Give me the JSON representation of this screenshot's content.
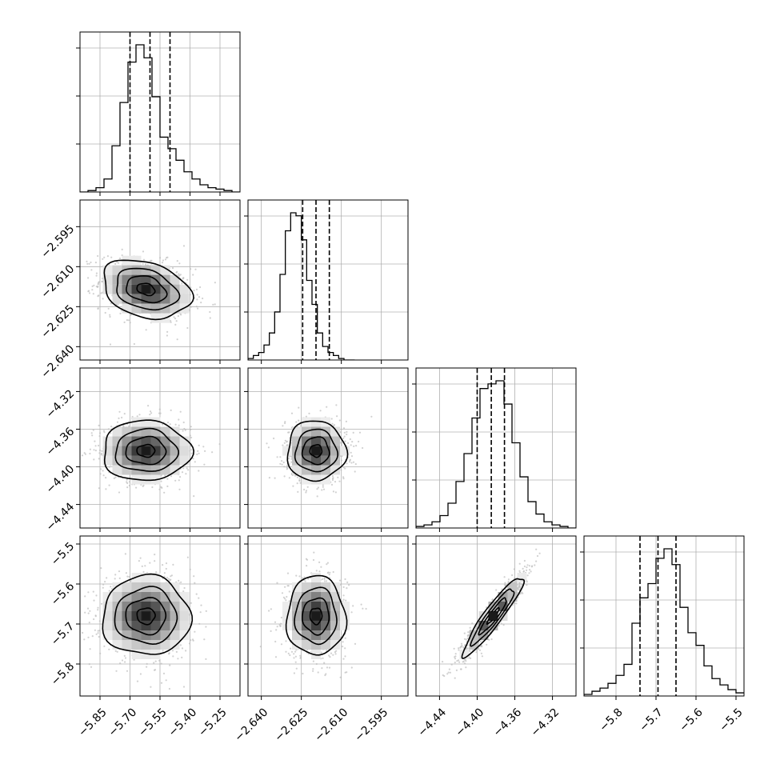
{
  "chart_data": {
    "type": "corner",
    "grid": true,
    "quantile_style": "dashed vertical lines at 16th, 50th, 84th percentiles",
    "variables": [
      {
        "range": [
          -5.95,
          -5.15
        ],
        "ticks": [
          -5.85,
          -5.7,
          -5.55,
          -5.4,
          -5.25
        ],
        "tick_labels": [
          "−5.85",
          "−5.70",
          "−5.55",
          "−5.40",
          "−5.25"
        ],
        "quantiles": [
          -5.7,
          -5.6,
          -5.5
        ],
        "hist_edges_start": -5.95,
        "hist_bin_width": 0.04,
        "hist": [
          0,
          1,
          3,
          9,
          32,
          62,
          90,
          102,
          93,
          66,
          38,
          30,
          22,
          14,
          9,
          5,
          3,
          2,
          1,
          0
        ]
      },
      {
        "range": [
          -2.645,
          -2.585
        ],
        "ticks": [
          -2.64,
          -2.625,
          -2.61,
          -2.595
        ],
        "tick_labels": [
          "−2.640",
          "−2.625",
          "−2.610",
          "−2.595"
        ],
        "quantiles": [
          -2.6245,
          -2.6195,
          -2.6145
        ],
        "hist_edges_start": -2.645,
        "hist_bin_width": 0.002,
        "hist": [
          1,
          3,
          5,
          10,
          18,
          32,
          57,
          86,
          98,
          96,
          80,
          53,
          37,
          18,
          9,
          5,
          3,
          1,
          0,
          0
        ]
      },
      {
        "range": [
          -4.465,
          -4.295
        ],
        "ticks": [
          -4.44,
          -4.4,
          -4.36,
          -4.32
        ],
        "tick_labels": [
          "−4.44",
          "−4.40",
          "−4.36",
          "−4.32"
        ],
        "quantiles": [
          -4.4,
          -4.385,
          -4.371
        ],
        "hist_edges_start": -4.465,
        "hist_bin_width": 0.0085,
        "hist": [
          1,
          2,
          4,
          8,
          16,
          30,
          48,
          71,
          90,
          93,
          95,
          80,
          55,
          33,
          17,
          9,
          4,
          2,
          1,
          0
        ]
      },
      {
        "range": [
          -5.88,
          -5.48
        ],
        "ticks": [
          -5.8,
          -5.7,
          -5.6,
          -5.5
        ],
        "tick_labels": [
          "−5.8",
          "−5.7",
          "−5.6",
          "−5.5"
        ],
        "quantiles": [
          -5.74,
          -5.695,
          -5.65
        ],
        "hist_edges_start": -5.88,
        "hist_bin_width": 0.02,
        "hist": [
          1,
          3,
          5,
          8,
          13,
          20,
          46,
          62,
          71,
          87,
          93,
          83,
          56,
          40,
          32,
          19,
          11,
          7,
          4,
          2
        ]
      }
    ],
    "pairs": [
      {
        "row": 1,
        "col": 0,
        "center": [
          -5.62,
          -2.6185
        ],
        "corr": -0.28
      },
      {
        "row": 2,
        "col": 0,
        "center": [
          -5.62,
          -4.383
        ],
        "corr": 0.0
      },
      {
        "row": 2,
        "col": 1,
        "center": [
          -2.6195,
          -4.383
        ],
        "corr": 0.0
      },
      {
        "row": 3,
        "col": 0,
        "center": [
          -5.62,
          -5.68
        ],
        "corr": 0.0
      },
      {
        "row": 3,
        "col": 1,
        "center": [
          -2.6195,
          -5.68
        ],
        "corr": 0.0
      },
      {
        "row": 3,
        "col": 2,
        "center": [
          -4.383,
          -5.68
        ],
        "corr": 0.93
      }
    ]
  },
  "colors": {
    "line": "#000000",
    "grid": "#b0b0b0",
    "scatter": "#bdbdbd",
    "density_dark": "#1a1a1a"
  }
}
